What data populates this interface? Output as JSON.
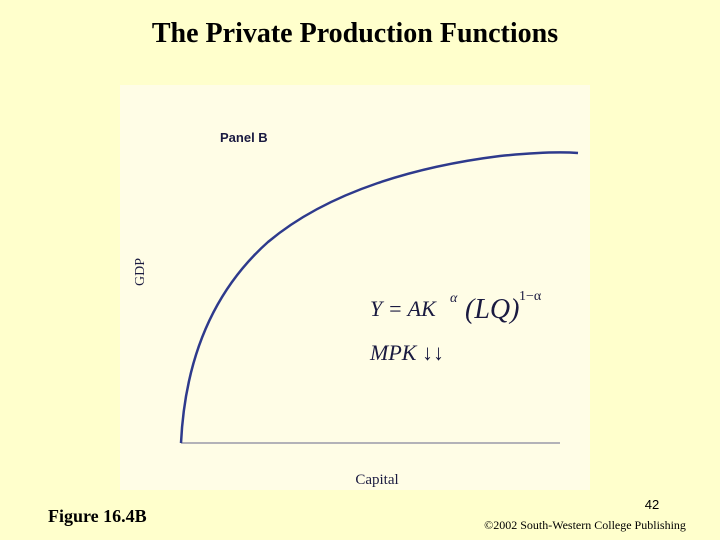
{
  "header": {
    "title": "The Private Production Functions"
  },
  "panel": {
    "label": "Panel B",
    "y_axis_label": "GDP",
    "x_axis_label": "Capital",
    "equation": {
      "lhs": "Y = AK",
      "exp1": "α",
      "group": "(LQ)",
      "exp2": "1−α"
    },
    "note": "MPK ↓↓"
  },
  "footer": {
    "figure": "Figure 16.4B",
    "page": "42",
    "copyright": "©2002 South-Western College Publishing"
  }
}
